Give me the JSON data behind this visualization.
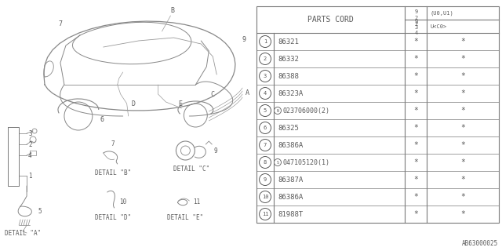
{
  "bg_color": "#ffffff",
  "parts_cord_header": "PARTS CORD",
  "rows": [
    {
      "num": "1",
      "part": "86321",
      "prefix": "",
      "c1": "*",
      "c2": "*"
    },
    {
      "num": "2",
      "part": "86332",
      "prefix": "",
      "c1": "*",
      "c2": "*"
    },
    {
      "num": "3",
      "part": "86388",
      "prefix": "",
      "c1": "*",
      "c2": "*"
    },
    {
      "num": "4",
      "part": "86323A",
      "prefix": "",
      "c1": "*",
      "c2": "*"
    },
    {
      "num": "5",
      "part": "023706000(2)",
      "prefix": "N",
      "c1": "*",
      "c2": "*"
    },
    {
      "num": "6",
      "part": "86325",
      "prefix": "",
      "c1": "*",
      "c2": "*"
    },
    {
      "num": "7",
      "part": "86386A",
      "prefix": "",
      "c1": "*",
      "c2": "*"
    },
    {
      "num": "8",
      "part": "047105120(1)",
      "prefix": "S",
      "c1": "*",
      "c2": "*"
    },
    {
      "num": "9",
      "part": "86387A",
      "prefix": "",
      "c1": "*",
      "c2": "*"
    },
    {
      "num": "10",
      "part": "86386A",
      "prefix": "",
      "c1": "*",
      "c2": "*"
    },
    {
      "num": "11",
      "part": "81988T",
      "prefix": "",
      "c1": "*",
      "c2": "*"
    }
  ],
  "diagram_code": "AB63000025",
  "line_color": "#7a7a7a",
  "text_color": "#5a5a5a"
}
